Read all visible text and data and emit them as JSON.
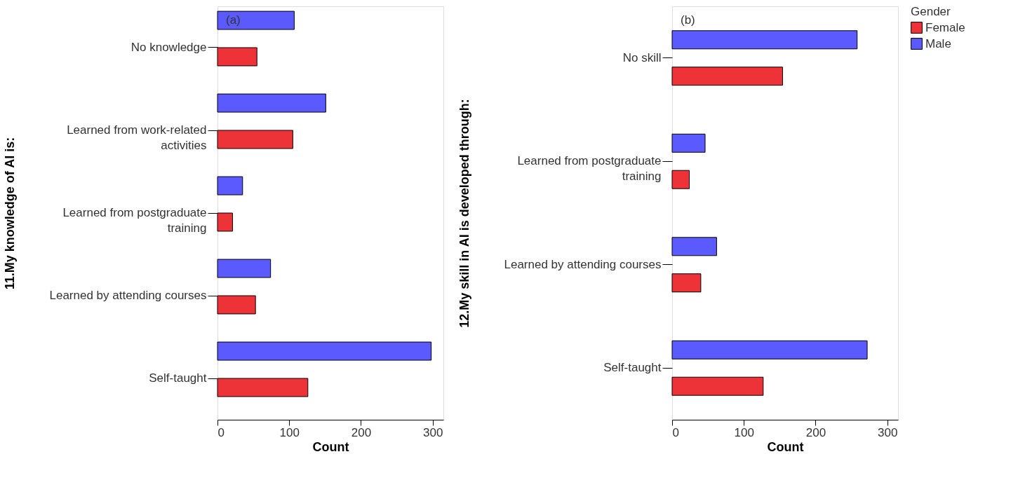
{
  "chart_data": [
    {
      "type": "bar",
      "orientation": "horizontal",
      "annotations": [
        "(a)"
      ],
      "xlabel": "Count",
      "ylabel": "11.My knowledge of AI is:",
      "categories": [
        "No knowledge",
        "Learned from work-related\nactivities",
        "Learned from postgraduate\ntraining",
        "Learned by attending courses",
        "Self-taught"
      ],
      "series": [
        {
          "color": "#ee3338",
          "values": [
            55,
            105,
            21,
            53,
            126
          ]
        },
        {
          "color": "#5a5aff",
          "values": [
            107,
            151,
            35,
            74,
            298
          ]
        }
      ],
      "xlim": [
        0,
        315
      ],
      "xticks": [
        0,
        100,
        200,
        300
      ],
      "grid": false,
      "legend": false
    },
    {
      "type": "bar",
      "orientation": "horizontal",
      "annotations": [
        "(b)"
      ],
      "xlabel": "Count",
      "ylabel": "12.My skill in AI is developed through:",
      "legend_title": "Gender",
      "categories": [
        "No skill",
        "Learned from postgraduate\ntraining",
        "Learned by attending courses",
        "Self-taught"
      ],
      "series": [
        {
          "name": "Female",
          "color": "#ee3338",
          "values": [
            154,
            24,
            40,
            127
          ]
        },
        {
          "name": "Male",
          "color": "#5a5aff",
          "values": [
            258,
            46,
            62,
            272
          ]
        }
      ],
      "xlim": [
        0,
        315
      ],
      "xticks": [
        0,
        100,
        200,
        300
      ],
      "grid": false,
      "legend": "top right"
    }
  ]
}
